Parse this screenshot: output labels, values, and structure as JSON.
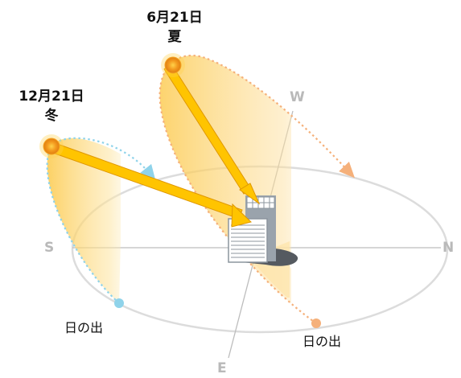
{
  "summer": {
    "date": "6月21日",
    "season": "夏"
  },
  "winter": {
    "date": "12月21日",
    "season": "冬"
  },
  "compass": {
    "west": "W",
    "south": "S",
    "north": "N",
    "east": "E"
  },
  "sunrise_label": "日の出",
  "colors": {
    "sun": "#f5a623",
    "arrow": "#ffc400",
    "winter_path": "#8fd3ea",
    "summer_path": "#f5b07a",
    "horizon": "#d9d9d9",
    "building": "#9aa3ac"
  }
}
